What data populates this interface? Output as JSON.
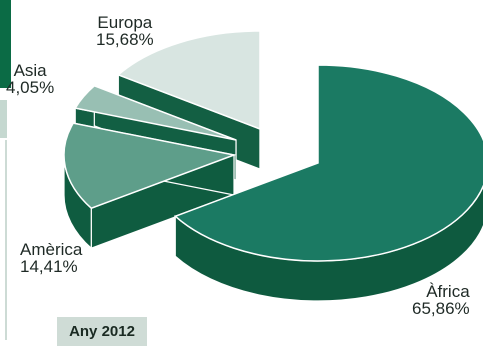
{
  "chart_data": {
    "type": "pie",
    "title": "",
    "annotation": "Any 2012",
    "slices": [
      {
        "label": "Àfrica",
        "value": 65.86,
        "value_label": "65,86%",
        "color": "#1b7a63",
        "side_color": "#0e5a3f"
      },
      {
        "label": "Amèrica",
        "value": 14.41,
        "value_label": "14,41%",
        "color": "#5e9e8a",
        "side_color": "#0f5c40"
      },
      {
        "label": "Asia",
        "value": 4.05,
        "value_label": "4,05%",
        "color": "#98bfb3",
        "side_color": "#125f43"
      },
      {
        "label": "Europa",
        "value": 15.68,
        "value_label": "15,68%",
        "color": "#d8e5e1",
        "side_color": "#135f43"
      }
    ]
  }
}
